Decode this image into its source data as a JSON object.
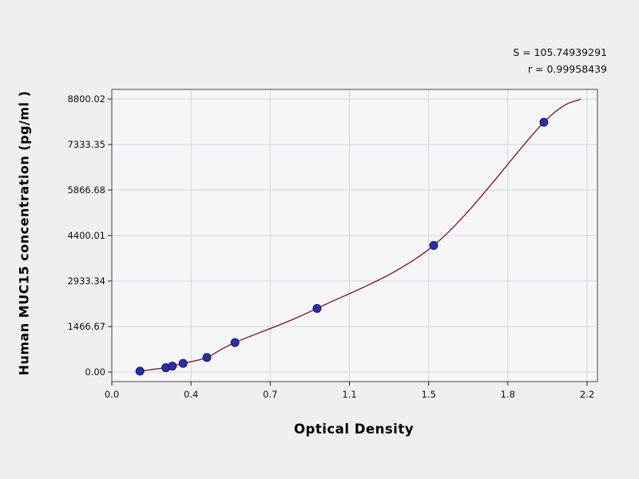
{
  "chart_data": {
    "type": "scatter",
    "title": "",
    "xlabel": "Optical Density",
    "ylabel": "Human MUC15 concentration (pg/ml )",
    "xlim": [
      0.0,
      2.2
    ],
    "ylim": [
      0.0,
      8800.02
    ],
    "grid": true,
    "x_ticks": [
      0.0,
      0.4,
      0.7,
      1.1,
      1.5,
      1.8,
      2.2
    ],
    "x_tick_labels": [
      "0.0",
      "0.4",
      "0.7",
      "1.1",
      "1.5",
      "1.8",
      "2.2"
    ],
    "y_ticks": [
      0.0,
      1466.67,
      2933.34,
      4400.01,
      5866.68,
      7333.35,
      8800.02
    ],
    "y_tick_labels": [
      "0.00",
      "1466.67",
      "2933.34",
      "4400.01",
      "5866.68",
      "7333.35",
      "8800.02"
    ],
    "points": [
      {
        "x": 0.13,
        "y": 30
      },
      {
        "x": 0.25,
        "y": 140
      },
      {
        "x": 0.28,
        "y": 190
      },
      {
        "x": 0.33,
        "y": 280
      },
      {
        "x": 0.44,
        "y": 470
      },
      {
        "x": 0.57,
        "y": 950
      },
      {
        "x": 0.95,
        "y": 2050
      },
      {
        "x": 1.49,
        "y": 4080
      },
      {
        "x": 2.0,
        "y": 8050
      }
    ],
    "curve_end": {
      "x": 2.17,
      "y": 8800
    },
    "stats": {
      "s_label": "S = 105.74939291",
      "r_label": "r = 0.99958439"
    },
    "colors": {
      "point": "#2e2e9e",
      "point_edge": "#15156a",
      "curve": "#7d2230",
      "grid": "#ccd6de",
      "axis": "#444444",
      "background": "#efeef0",
      "plot_bg": "#f6f6f8"
    }
  }
}
